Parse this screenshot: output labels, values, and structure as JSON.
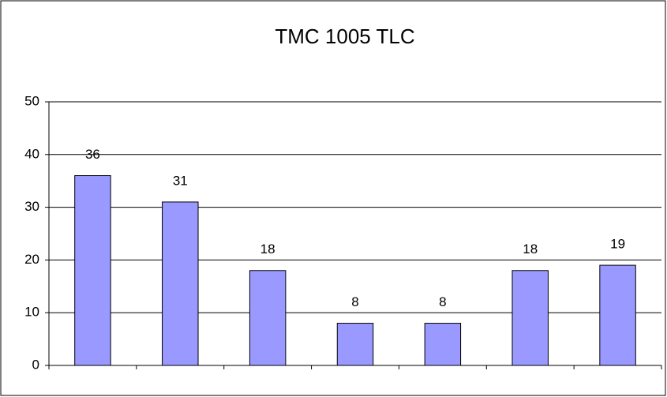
{
  "chart_data": {
    "type": "bar",
    "title": "TMC 1005 TLC",
    "categories": [
      null,
      null,
      null,
      null,
      null,
      null,
      null
    ],
    "values": [
      36,
      31,
      18,
      8,
      8,
      18,
      19
    ],
    "color": "#9999ff",
    "ylim": [
      0,
      50
    ],
    "yticks": [
      0,
      10,
      20,
      30,
      40,
      50
    ],
    "grid": true
  }
}
